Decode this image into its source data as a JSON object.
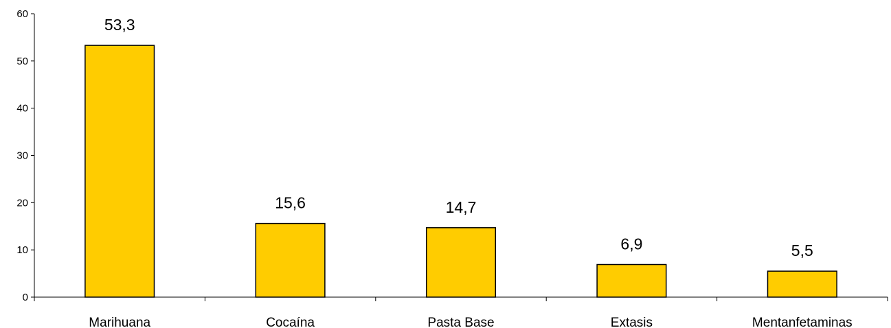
{
  "chart_data": {
    "type": "bar",
    "title": "",
    "xlabel": "",
    "ylabel": "",
    "categories": [
      "Marihuana",
      "Cocaína",
      "Pasta Base",
      "Extasis",
      "Mentanfetaminas"
    ],
    "values": [
      53.3,
      15.6,
      14.7,
      6.9,
      5.5
    ],
    "data_labels": [
      "53,3",
      "15,6",
      "14,7",
      "6,9",
      "5,5"
    ],
    "ylim": [
      0,
      60
    ],
    "yticks": [
      0,
      10,
      20,
      30,
      40,
      50,
      60
    ],
    "grid": false,
    "legend": "none",
    "bar_color": "#FFCC00",
    "bar_edge_color": "#000000"
  }
}
